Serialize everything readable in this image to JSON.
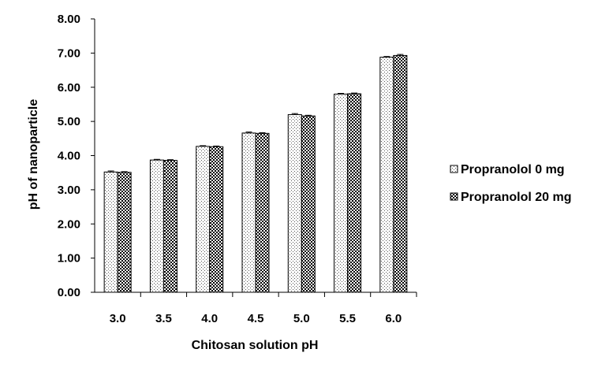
{
  "chart_data": {
    "type": "bar",
    "categories": [
      "3.0",
      "3.5",
      "4.0",
      "4.5",
      "5.0",
      "5.5",
      "6.0"
    ],
    "series": [
      {
        "name": "Propranolol 0 mg",
        "values": [
          3.52,
          3.87,
          4.27,
          4.66,
          5.2,
          5.8,
          6.88
        ],
        "error": [
          0.03,
          0.02,
          0.02,
          0.03,
          0.03,
          0.02,
          0.02
        ],
        "pattern": "dots"
      },
      {
        "name": "Propranolol 20 mg",
        "values": [
          3.51,
          3.86,
          4.26,
          4.65,
          5.16,
          5.81,
          6.93
        ],
        "error": [
          0.02,
          0.02,
          0.02,
          0.02,
          0.02,
          0.02,
          0.03
        ],
        "pattern": "checker"
      }
    ],
    "xlabel": "Chitosan solution pH",
    "ylabel": "pH of nanoparticle",
    "ylim": [
      0,
      8
    ],
    "yticks": [
      "0.00",
      "1.00",
      "2.00",
      "3.00",
      "4.00",
      "5.00",
      "6.00",
      "7.00",
      "8.00"
    ],
    "grid": false,
    "legend_position": "right"
  }
}
